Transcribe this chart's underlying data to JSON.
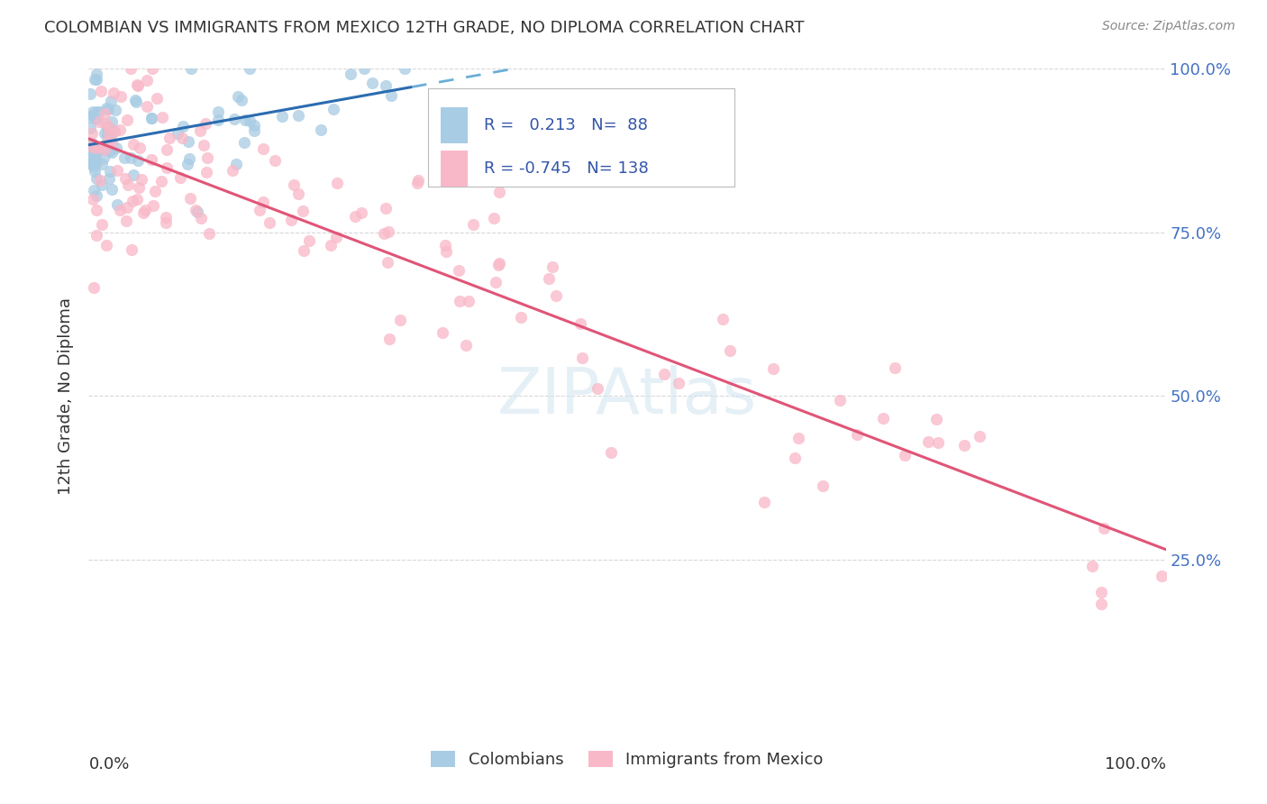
{
  "title": "COLOMBIAN VS IMMIGRANTS FROM MEXICO 12TH GRADE, NO DIPLOMA CORRELATION CHART",
  "source": "Source: ZipAtlas.com",
  "ylabel": "12th Grade, No Diploma",
  "legend_colombians": "Colombians",
  "legend_mexico": "Immigrants from Mexico",
  "colombian_R": "0.213",
  "colombian_N": "88",
  "mexico_R": "-0.745",
  "mexico_N": "138",
  "blue_dot_color": "#a8cce4",
  "blue_line_color": "#2b6cb0",
  "blue_dash_color": "#6baed6",
  "pink_dot_color": "#f9b8c8",
  "pink_line_color": "#e05577",
  "background_color": "#ffffff",
  "grid_color": "#d8d8d8",
  "title_color": "#333333",
  "source_color": "#888888",
  "axis_label_color": "#333333",
  "right_tick_color": "#4472c4",
  "watermark_color": "#d0e4f0",
  "legend_text_color": "#3355aa"
}
